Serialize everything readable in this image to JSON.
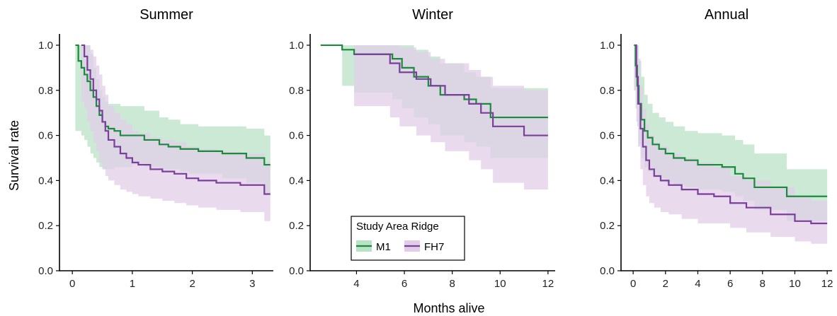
{
  "figure": {
    "ylabel": "Survival rate",
    "xlabel": "Months alive"
  },
  "legend": {
    "title": "Study Area Ridge",
    "placement": "inside-bottom-left of Winter panel",
    "entries": [
      {
        "name": "M1",
        "color": "#1a8a3c",
        "fill": "#b9e2c7"
      },
      {
        "name": "FH7",
        "color": "#7a3f9a",
        "fill": "#e1cde8"
      }
    ]
  },
  "chart_data": [
    {
      "type": "line",
      "step": true,
      "title": "Summer",
      "xlim": [
        -0.12,
        3.35
      ],
      "ylim": [
        0,
        1.05
      ],
      "xticks": [
        0,
        1,
        2,
        3
      ],
      "yticks": [
        0.0,
        0.2,
        0.4,
        0.6,
        0.8,
        1.0
      ],
      "series": [
        {
          "name": "M1",
          "x": [
            0.05,
            0.1,
            0.15,
            0.2,
            0.25,
            0.3,
            0.35,
            0.4,
            0.45,
            0.5,
            0.55,
            0.6,
            0.7,
            0.8,
            1.0,
            1.2,
            1.45,
            1.6,
            1.8,
            1.95,
            2.1,
            2.5,
            2.9,
            3.2,
            3.3
          ],
          "y": [
            1.0,
            0.93,
            0.9,
            0.87,
            0.84,
            0.8,
            0.77,
            0.73,
            0.69,
            0.66,
            0.64,
            0.63,
            0.62,
            0.6,
            0.6,
            0.58,
            0.56,
            0.55,
            0.54,
            0.54,
            0.53,
            0.52,
            0.5,
            0.47,
            0.47
          ],
          "lower": [
            0.62,
            0.62,
            0.6,
            0.58,
            0.55,
            0.52,
            0.5,
            0.48,
            0.46,
            0.45,
            0.45,
            0.45,
            0.46,
            0.46,
            0.47,
            0.46,
            0.45,
            0.45,
            0.44,
            0.43,
            0.43,
            0.41,
            0.39,
            0.34,
            0.34
          ],
          "upper": [
            1.0,
            1.0,
            1.0,
            1.0,
            1.0,
            0.96,
            0.9,
            0.85,
            0.8,
            0.77,
            0.75,
            0.74,
            0.74,
            0.73,
            0.73,
            0.71,
            0.68,
            0.67,
            0.65,
            0.65,
            0.64,
            0.64,
            0.63,
            0.6,
            0.6
          ]
        },
        {
          "name": "FH7",
          "x": [
            0.15,
            0.2,
            0.25,
            0.3,
            0.35,
            0.4,
            0.45,
            0.5,
            0.55,
            0.6,
            0.7,
            0.8,
            0.9,
            1.0,
            1.1,
            1.3,
            1.5,
            1.7,
            1.9,
            2.1,
            2.4,
            2.8,
            3.2,
            3.3
          ],
          "y": [
            1.0,
            0.95,
            0.89,
            0.85,
            0.8,
            0.76,
            0.71,
            0.66,
            0.62,
            0.58,
            0.55,
            0.52,
            0.5,
            0.48,
            0.47,
            0.45,
            0.44,
            0.43,
            0.41,
            0.4,
            0.39,
            0.38,
            0.34,
            0.34
          ],
          "lower": [
            0.75,
            0.72,
            0.66,
            0.62,
            0.57,
            0.53,
            0.48,
            0.45,
            0.42,
            0.4,
            0.38,
            0.36,
            0.35,
            0.34,
            0.33,
            0.32,
            0.31,
            0.3,
            0.29,
            0.28,
            0.27,
            0.26,
            0.22,
            0.22
          ],
          "upper": [
            1.0,
            1.0,
            1.0,
            0.98,
            0.95,
            0.91,
            0.87,
            0.82,
            0.78,
            0.73,
            0.7,
            0.67,
            0.65,
            0.62,
            0.61,
            0.59,
            0.58,
            0.57,
            0.55,
            0.54,
            0.53,
            0.52,
            0.48,
            0.48
          ]
        }
      ]
    },
    {
      "type": "line",
      "step": true,
      "title": "Winter",
      "xlim": [
        2.3,
        12.3
      ],
      "ylim": [
        0,
        1.05
      ],
      "xticks": [
        4,
        6,
        8,
        10,
        12
      ],
      "yticks": [
        0.0,
        0.2,
        0.4,
        0.6,
        0.8,
        1.0
      ],
      "series": [
        {
          "name": "M1",
          "x": [
            2.5,
            3.4,
            3.9,
            5.5,
            5.9,
            6.4,
            7.0,
            7.5,
            8.5,
            9.0,
            9.6,
            12.0
          ],
          "y": [
            1.0,
            0.98,
            0.96,
            0.94,
            0.9,
            0.86,
            0.82,
            0.78,
            0.76,
            0.74,
            0.68,
            0.68
          ],
          "lower": [
            1.0,
            0.82,
            0.79,
            0.76,
            0.72,
            0.68,
            0.65,
            0.6,
            0.57,
            0.55,
            0.5,
            0.5
          ],
          "upper": [
            1.0,
            1.0,
            1.0,
            1.0,
            1.0,
            0.98,
            0.95,
            0.92,
            0.88,
            0.86,
            0.81,
            0.81
          ]
        },
        {
          "name": "FH7",
          "x": [
            3.9,
            5.4,
            5.8,
            6.5,
            7.1,
            7.7,
            8.7,
            9.2,
            9.7,
            11.0,
            12.0
          ],
          "y": [
            0.96,
            0.92,
            0.88,
            0.85,
            0.82,
            0.78,
            0.74,
            0.7,
            0.64,
            0.6,
            0.6
          ],
          "lower": [
            0.73,
            0.68,
            0.64,
            0.6,
            0.57,
            0.53,
            0.49,
            0.45,
            0.39,
            0.36,
            0.36
          ],
          "upper": [
            1.0,
            1.0,
            0.99,
            0.97,
            0.94,
            0.92,
            0.89,
            0.86,
            0.82,
            0.8,
            0.8
          ]
        }
      ]
    },
    {
      "type": "line",
      "step": true,
      "title": "Annual",
      "xlim": [
        -0.4,
        12.3
      ],
      "ylim": [
        0,
        1.05
      ],
      "xticks": [
        0,
        2,
        4,
        6,
        8,
        10,
        12
      ],
      "yticks": [
        0.0,
        0.2,
        0.4,
        0.6,
        0.8,
        1.0
      ],
      "series": [
        {
          "name": "M1",
          "x": [
            0.05,
            0.15,
            0.25,
            0.35,
            0.5,
            0.7,
            0.9,
            1.2,
            1.6,
            2.0,
            2.5,
            3.2,
            4.0,
            5.5,
            6.3,
            6.8,
            7.5,
            9.5,
            12.0
          ],
          "y": [
            1.0,
            0.91,
            0.82,
            0.74,
            0.67,
            0.62,
            0.59,
            0.56,
            0.54,
            0.52,
            0.5,
            0.49,
            0.47,
            0.46,
            0.43,
            0.41,
            0.37,
            0.33,
            0.33
          ],
          "lower": [
            0.8,
            0.72,
            0.64,
            0.56,
            0.5,
            0.46,
            0.44,
            0.42,
            0.41,
            0.39,
            0.38,
            0.37,
            0.36,
            0.35,
            0.33,
            0.31,
            0.27,
            0.22,
            0.22
          ],
          "upper": [
            1.0,
            1.0,
            1.0,
            0.93,
            0.86,
            0.78,
            0.74,
            0.7,
            0.68,
            0.66,
            0.64,
            0.62,
            0.61,
            0.6,
            0.58,
            0.56,
            0.52,
            0.45,
            0.45
          ]
        },
        {
          "name": "FH7",
          "x": [
            0.1,
            0.2,
            0.3,
            0.45,
            0.6,
            0.8,
            1.0,
            1.3,
            1.7,
            2.2,
            3.0,
            4.0,
            5.0,
            6.0,
            7.0,
            8.5,
            10.0,
            11.0,
            12.0
          ],
          "y": [
            1.0,
            0.86,
            0.74,
            0.63,
            0.55,
            0.49,
            0.45,
            0.42,
            0.4,
            0.38,
            0.36,
            0.34,
            0.33,
            0.3,
            0.28,
            0.25,
            0.22,
            0.21,
            0.21
          ],
          "lower": [
            0.8,
            0.66,
            0.55,
            0.45,
            0.38,
            0.33,
            0.3,
            0.28,
            0.26,
            0.25,
            0.23,
            0.21,
            0.21,
            0.19,
            0.17,
            0.15,
            0.13,
            0.12,
            0.12
          ],
          "upper": [
            1.0,
            1.0,
            0.94,
            0.82,
            0.72,
            0.65,
            0.6,
            0.57,
            0.55,
            0.52,
            0.5,
            0.48,
            0.46,
            0.42,
            0.4,
            0.37,
            0.33,
            0.31,
            0.31
          ]
        }
      ]
    }
  ]
}
